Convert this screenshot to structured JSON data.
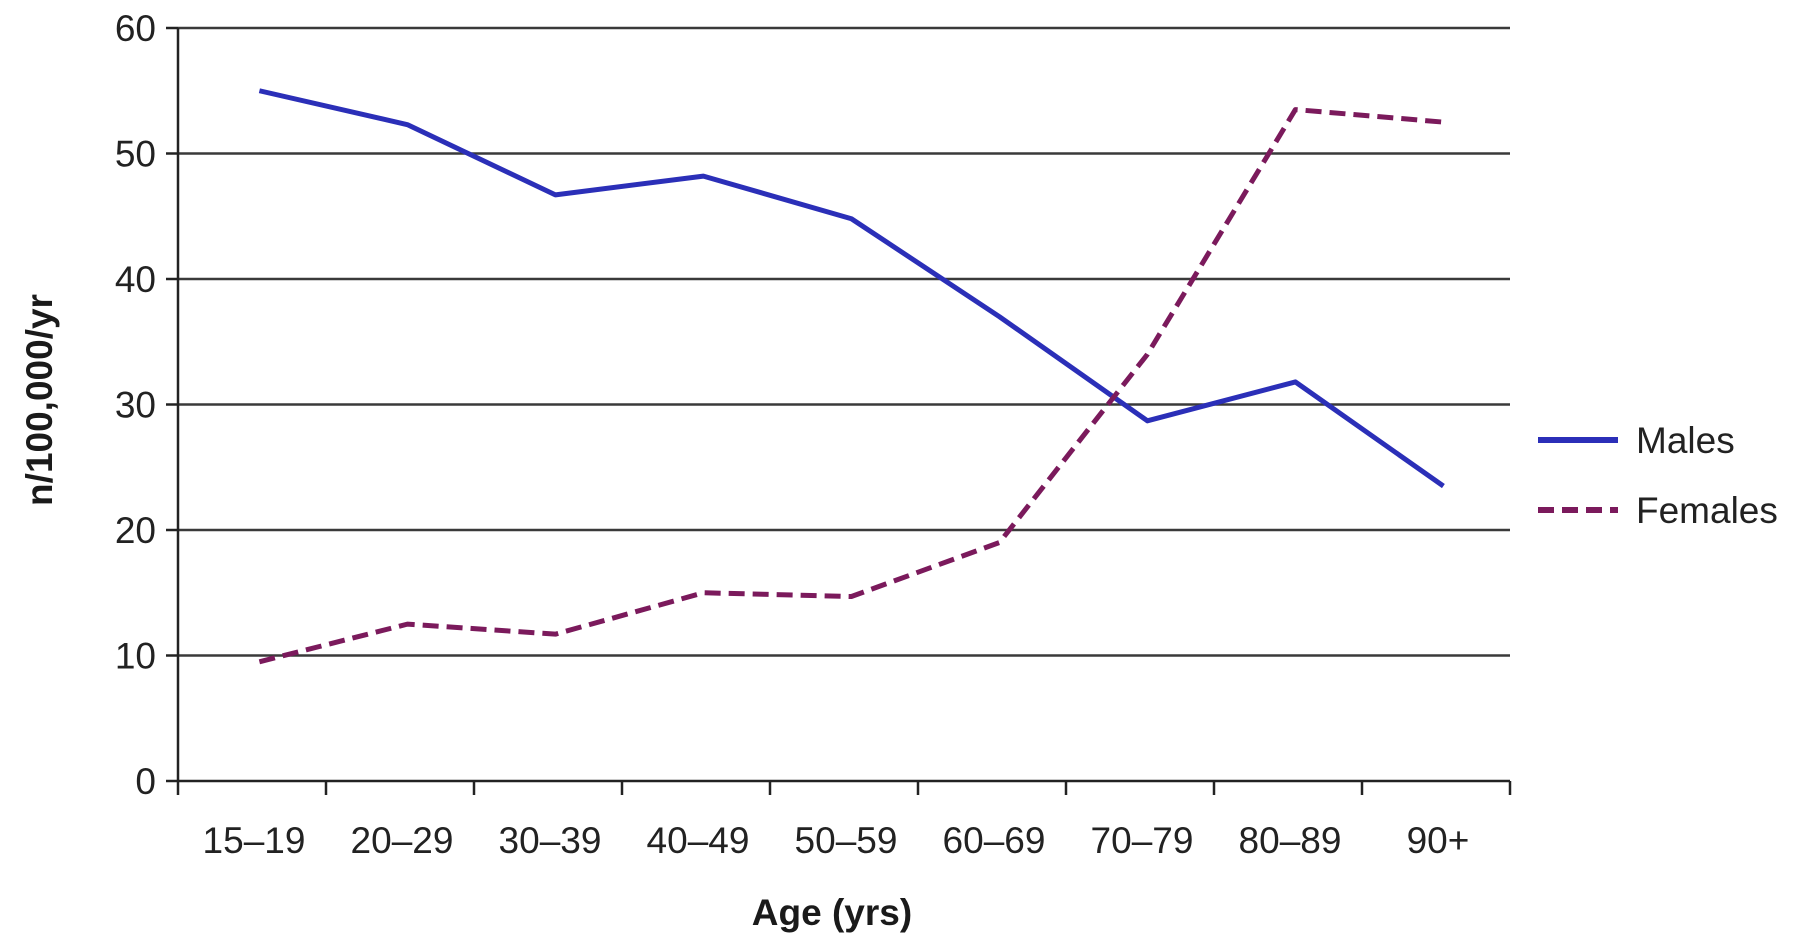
{
  "chart_data": {
    "type": "line",
    "xlabel": "Age (yrs)",
    "ylabel": "n/100,000/yr",
    "ylim": [
      0,
      60
    ],
    "yticks": [
      0,
      10,
      20,
      30,
      40,
      50,
      60
    ],
    "grid": "horizontal",
    "legend_position": "right",
    "categories": [
      "15–19",
      "20–29",
      "30–39",
      "40–49",
      "50–59",
      "60–69",
      "70–79",
      "80–89",
      "90+"
    ],
    "series": [
      {
        "name": "Males",
        "style": "solid",
        "color": "#2b2fb8",
        "values": [
          55,
          52.3,
          46.7,
          48.2,
          44.8,
          37,
          28.7,
          31.8,
          23.5
        ]
      },
      {
        "name": "Females",
        "style": "dashed",
        "color": "#7b1a5c",
        "values": [
          9.5,
          12.5,
          11.7,
          15,
          14.7,
          19,
          34,
          53.5,
          52.5
        ]
      }
    ]
  },
  "colors": {
    "grid": "#3a3a3a",
    "axis": "#222222",
    "text": "#222222"
  }
}
